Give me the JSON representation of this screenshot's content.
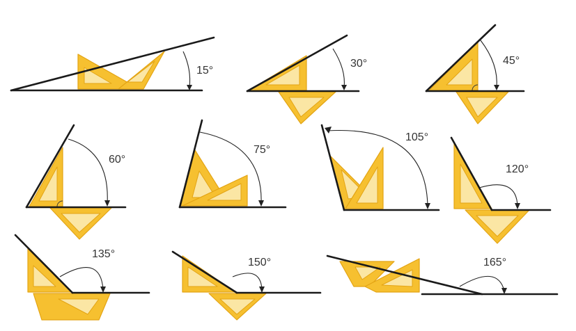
{
  "figures": [
    {
      "id": "angle-15",
      "label": "15°"
    },
    {
      "id": "angle-30",
      "label": "30°"
    },
    {
      "id": "angle-45",
      "label": "45°"
    },
    {
      "id": "angle-60",
      "label": "60°"
    },
    {
      "id": "angle-75",
      "label": "75°"
    },
    {
      "id": "angle-105",
      "label": "105°"
    },
    {
      "id": "angle-120",
      "label": "120°"
    },
    {
      "id": "angle-135",
      "label": "135°"
    },
    {
      "id": "angle-150",
      "label": "150°"
    },
    {
      "id": "angle-165",
      "label": "165°"
    }
  ],
  "colors": {
    "set_square_fill": "#f6c030",
    "set_square_cutout": "#fbe6a4",
    "line": "#1a1a1a"
  }
}
